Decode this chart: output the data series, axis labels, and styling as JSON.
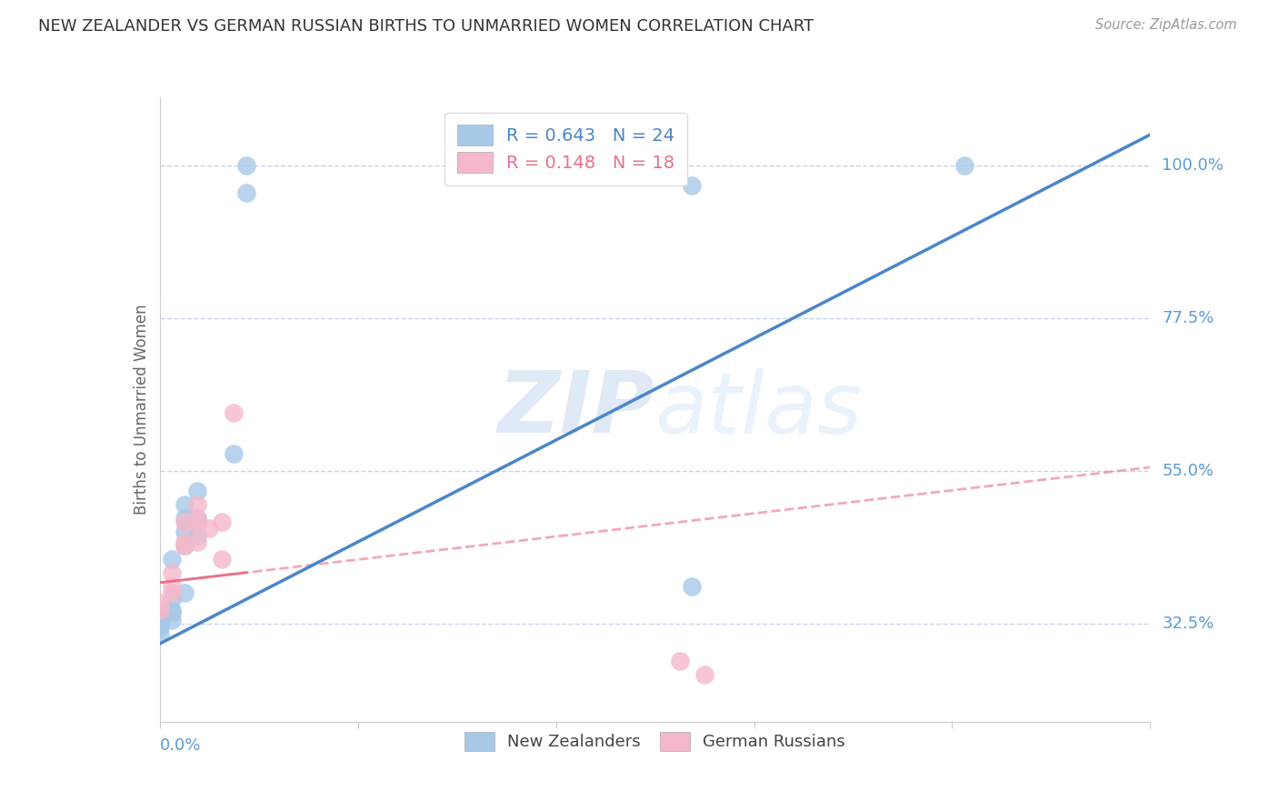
{
  "title": "NEW ZEALANDER VS GERMAN RUSSIAN BIRTHS TO UNMARRIED WOMEN CORRELATION CHART",
  "source": "Source: ZipAtlas.com",
  "ylabel": "Births to Unmarried Women",
  "ytick_labels": [
    "32.5%",
    "55.0%",
    "77.5%",
    "100.0%"
  ],
  "ytick_values": [
    0.325,
    0.55,
    0.775,
    1.0
  ],
  "xlim": [
    0.0,
    0.08
  ],
  "ylim": [
    0.18,
    1.1
  ],
  "watermark_zip": "ZIP",
  "watermark_atlas": "atlas",
  "blue_color": "#a8c8e8",
  "pink_color": "#f5b8cb",
  "blue_line_color": "#4a86c8",
  "pink_line_color": "#e8708a",
  "title_color": "#333333",
  "axis_label_color": "#5b9bd5",
  "grid_color": "#c8d4e8",
  "nz_x": [
    0.001,
    0.006,
    0.003,
    0.003,
    0.002,
    0.002,
    0.002,
    0.003,
    0.002,
    0.001,
    0.001,
    0.001,
    0.001,
    0.0,
    0.0,
    0.0,
    0.0,
    0.0,
    0.007,
    0.007,
    0.043,
    0.065,
    0.043,
    0.002
  ],
  "nz_y": [
    0.42,
    0.575,
    0.52,
    0.48,
    0.48,
    0.46,
    0.44,
    0.455,
    0.37,
    0.36,
    0.345,
    0.34,
    0.33,
    0.34,
    0.335,
    0.325,
    0.32,
    0.31,
    1.0,
    0.96,
    0.38,
    1.0,
    0.97,
    0.5
  ],
  "gr_x": [
    0.0,
    0.0,
    0.001,
    0.001,
    0.001,
    0.002,
    0.002,
    0.002,
    0.003,
    0.003,
    0.003,
    0.003,
    0.004,
    0.005,
    0.006,
    0.042,
    0.044,
    0.005
  ],
  "gr_y": [
    0.345,
    0.355,
    0.37,
    0.38,
    0.4,
    0.445,
    0.475,
    0.44,
    0.48,
    0.5,
    0.445,
    0.47,
    0.465,
    0.475,
    0.635,
    0.27,
    0.25,
    0.42
  ],
  "nz_regression_x0": 0.0,
  "nz_regression_y0": 0.295,
  "nz_regression_x1": 0.08,
  "nz_regression_y1": 1.045,
  "gr_regression_x0": 0.0,
  "gr_regression_y0": 0.385,
  "gr_regression_x1": 0.08,
  "gr_regression_y1": 0.555
}
